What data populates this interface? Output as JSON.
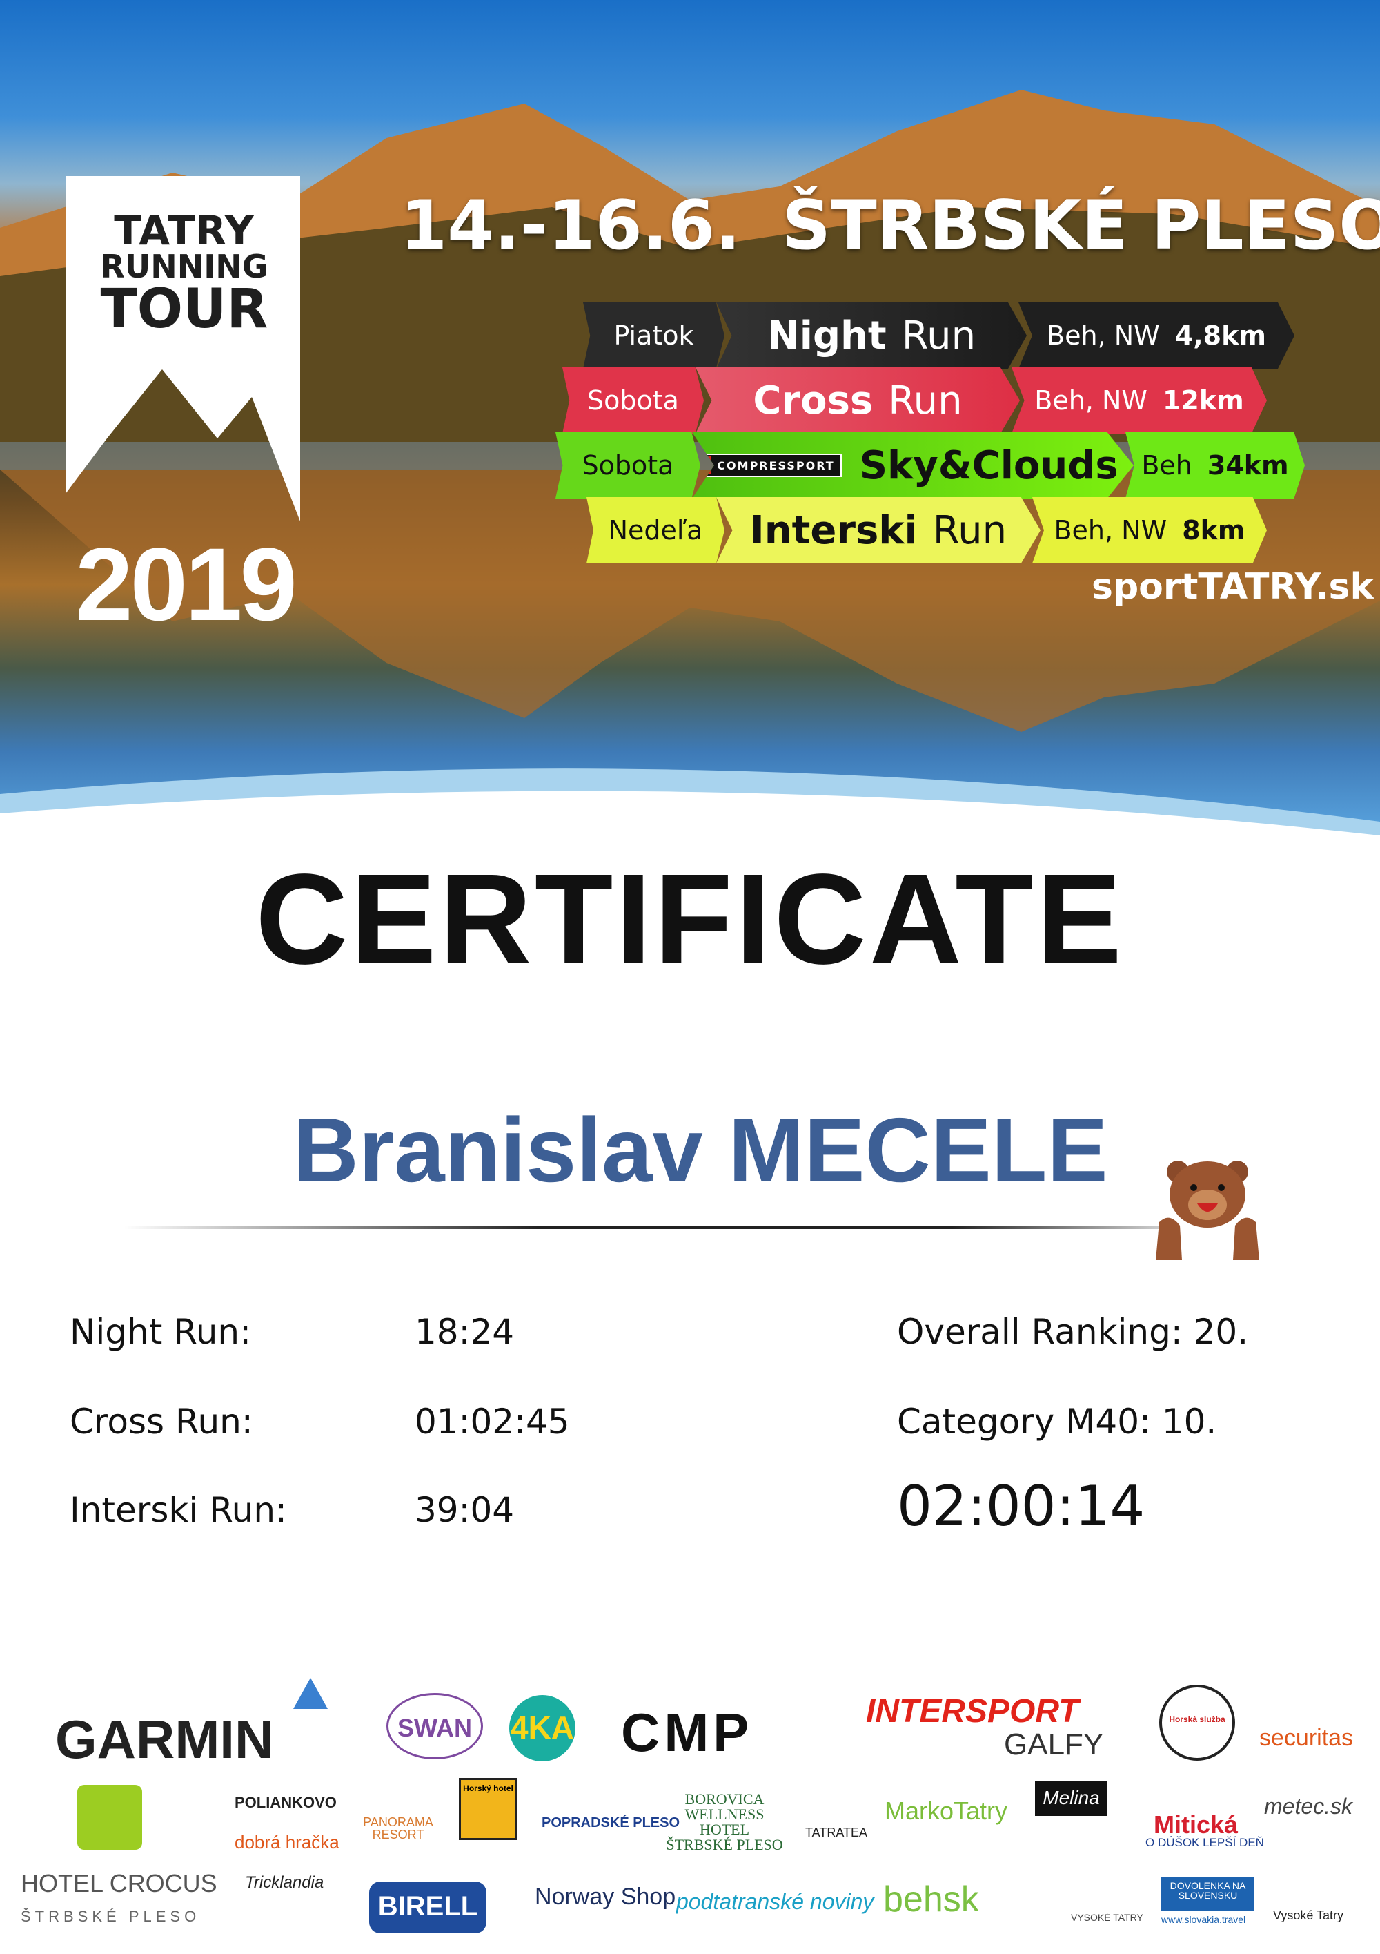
{
  "event": {
    "logo_lines": [
      "TATRY",
      "RUNNING",
      "TOUR"
    ],
    "year": "2019",
    "dates": "14.-16.6.",
    "location": "ŠTRBSKÉ PLESO",
    "website": "sportTATRY.sk",
    "races": [
      {
        "day": "Piatok",
        "name_bold": "Night",
        "name_rest": "Run",
        "type": "Beh, NW",
        "distance": "4,8km",
        "color": "#2b2b2b"
      },
      {
        "day": "Sobota",
        "name_bold": "Cross",
        "name_rest": "Run",
        "type": "Beh, NW",
        "distance": "12km",
        "color": "#e0344a"
      },
      {
        "day": "Sobota",
        "sponsor": "COMPRESSPORT",
        "name_bold": "Sky&Clouds",
        "name_rest": "",
        "type": "Beh",
        "distance": "34km",
        "color": "#6fe814"
      },
      {
        "day": "Nedeľa",
        "name_bold": "Interski",
        "name_rest": "Run",
        "type": "Beh, NW",
        "distance": "8km",
        "color": "#e6f23a"
      }
    ]
  },
  "certificate": {
    "title": "CERTIFICATE",
    "participant": "Branislav MECELE",
    "results": [
      {
        "label": "Night Run:",
        "time": "18:24"
      },
      {
        "label": "Cross Run:",
        "time": "01:02:45"
      },
      {
        "label": "Interski Run:",
        "time": "39:04"
      }
    ],
    "overall_ranking": "Overall Ranking: 20.",
    "category_ranking": "Category M40: 10.",
    "total_time": "02:00:14"
  },
  "sponsors": [
    "GARMIN",
    "SWAN",
    "4KA",
    "CMP",
    "INTERSPORT",
    "GALFY",
    "Horská služba",
    "securitas",
    "POLIANKOVO",
    "dobrá hračka",
    "PANORAMA RESORT",
    "Horský hotel",
    "POPRADSKÉ PLESO",
    "BOROVICA WELLNESS HOTEL ŠTRBSKÉ PLESO",
    "TATRATEA",
    "MarkoTatry",
    "Melina",
    "Mitická",
    "O DÚŠOK LEPŠÍ DEŇ",
    "metec.sk",
    "HOTEL CROCUS",
    "ŠTRBSKÉ PLESO",
    "Tricklandia",
    "BIRELL",
    "Norway Shop",
    "podtatranské noviny",
    "behsk",
    "VYSOKÉ TATRY",
    "DOVOLENKA NA SLOVENSKU",
    "www.slovakia.travel",
    "Vysoké Tatry"
  ]
}
